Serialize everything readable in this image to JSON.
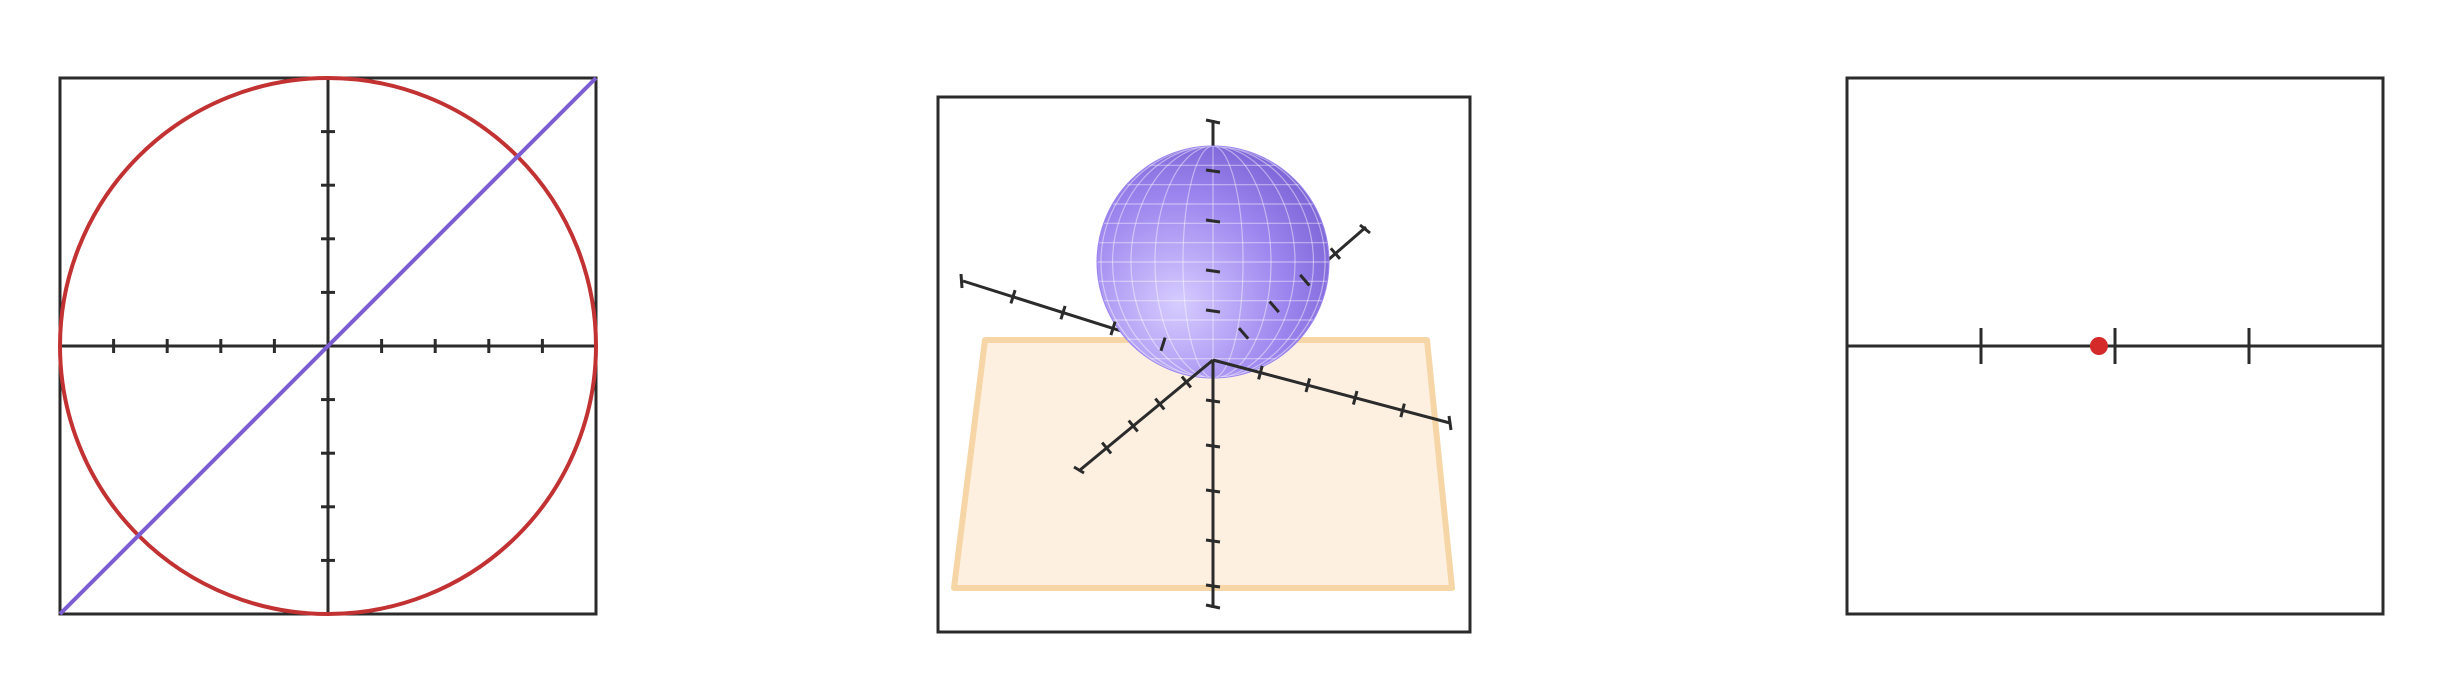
{
  "colors": {
    "background": "#ffffff",
    "frame": "#2b2b2b",
    "axis": "#2b2b2b",
    "circle": "#c23232",
    "line": "#7d5dd2",
    "sphere_light": "#d7ccff",
    "sphere_mid": "#9c85ee",
    "sphere_dark": "#6f57cc",
    "plane_fill": "#fdf0e1",
    "plane_stroke": "#f6d6a6",
    "point": "#d42a2a"
  },
  "panels": [
    {
      "name": "plane-2d",
      "kind": "cartesian-plane",
      "x_ticks_per_side": 4,
      "y_ticks_per_side": 4,
      "circle": {
        "center": [
          0,
          0
        ],
        "radius": 5
      },
      "line": {
        "from": [
          -5,
          -5
        ],
        "to": [
          5,
          5
        ]
      }
    },
    {
      "name": "space-3d",
      "kind": "three-axis-space",
      "sphere": {
        "center": [
          0,
          0,
          1
        ],
        "radius": 1
      },
      "plane": {
        "z": 0
      }
    },
    {
      "name": "number-line",
      "kind": "number-line",
      "tick_count": 3,
      "point_value": -0.12
    }
  ]
}
